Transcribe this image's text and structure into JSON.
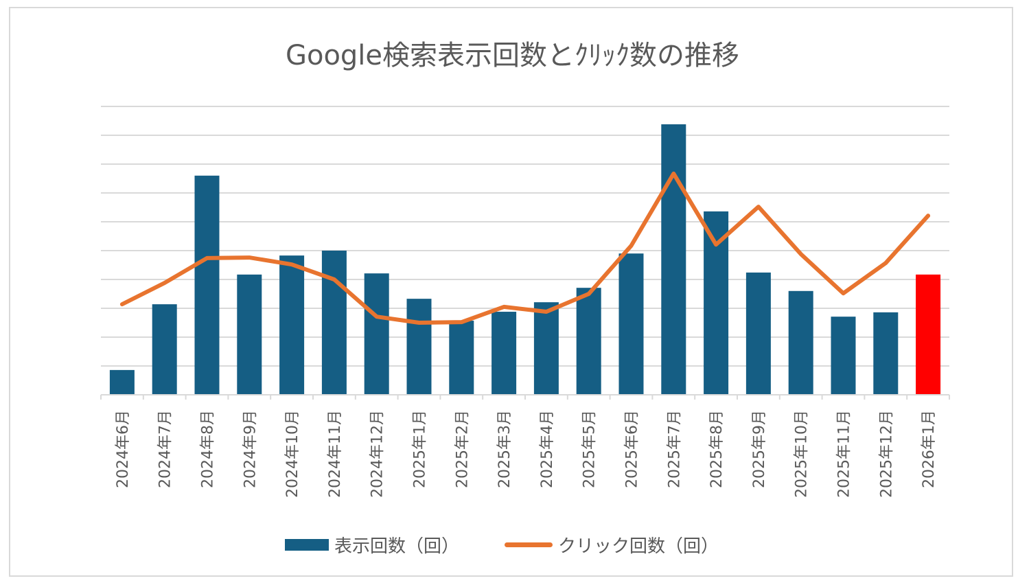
{
  "chart_data": {
    "type": "bar+line",
    "title": "Google検索表示回数とｸﾘｯｸ数の推移",
    "xlabel": "",
    "ylabel": "",
    "y_axis_labels_visible": false,
    "y_units": "gridline units (axis has no numeric labels; 10 gridline intervals)",
    "ylim": [
      0,
      10
    ],
    "grid": true,
    "legend_position": "bottom",
    "categories": [
      "2024年6月",
      "2024年7月",
      "2024年8月",
      "2024年9月",
      "2024年10月",
      "2024年11月",
      "2024年12月",
      "2025年1月",
      "2025年2月",
      "2025年3月",
      "2025年4月",
      "2025年5月",
      "2025年6月",
      "2025年7月",
      "2025年8月",
      "2025年9月",
      "2025年10月",
      "2025年11月",
      "2025年12月",
      "2026年1月"
    ],
    "series": [
      {
        "name": "表示回数（回）",
        "type": "bar",
        "color": "#155e84",
        "highlight": {
          "index": 19,
          "color": "#ff0000"
        },
        "values": [
          0.86,
          3.14,
          7.6,
          4.17,
          4.83,
          5.0,
          4.21,
          3.33,
          2.57,
          2.88,
          3.21,
          3.71,
          4.9,
          9.38,
          6.36,
          4.24,
          3.6,
          2.71,
          2.86,
          4.17
        ]
      },
      {
        "name": "クリック回数（回）",
        "type": "line",
        "color": "#e8742f",
        "values": [
          3.14,
          3.88,
          4.74,
          4.76,
          4.52,
          4.0,
          2.71,
          2.5,
          2.52,
          3.05,
          2.88,
          3.5,
          5.17,
          7.67,
          5.21,
          6.52,
          4.88,
          3.52,
          4.57,
          6.21
        ]
      }
    ]
  },
  "legend": {
    "bar_label": "表示回数（回）",
    "line_label": "クリック回数（回）"
  },
  "colors": {
    "bar": "#155e84",
    "bar_highlight": "#ff0000",
    "line": "#e8742f",
    "grid": "#d9d9d9",
    "text": "#595959"
  }
}
